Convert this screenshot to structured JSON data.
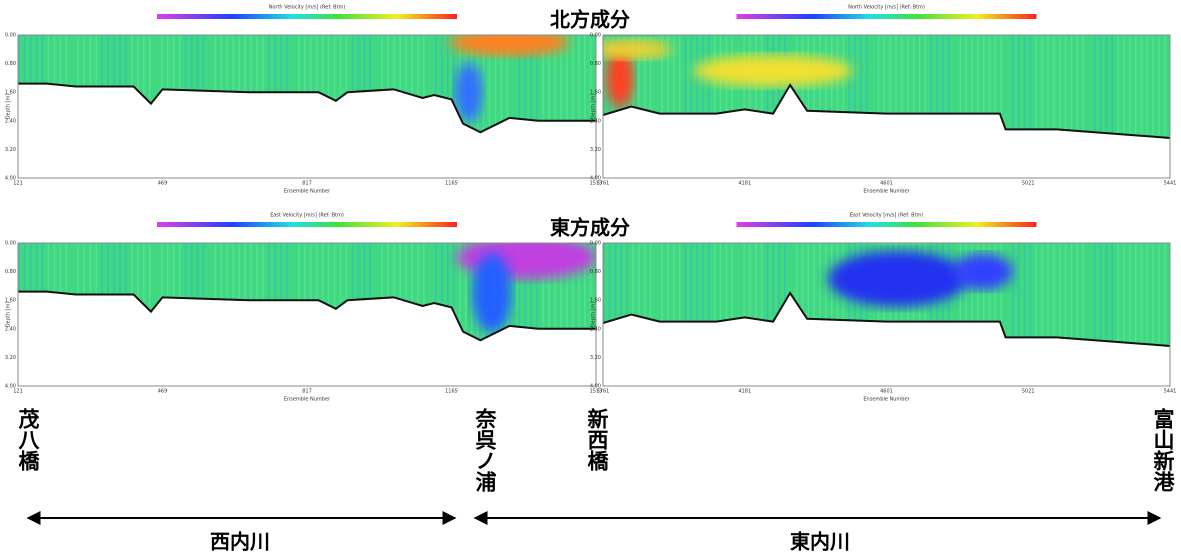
{
  "rows": [
    {
      "title": "北方成分",
      "panels": [
        {
          "colorbar_label": "North Velocity [m/s] (Ref: Btm)",
          "x_label": "Ensemble Number",
          "y_label": "Depth [m]",
          "xticks": [
            "121",
            "469",
            "817",
            "1165",
            "1513"
          ],
          "yticks": [
            "0.00",
            "0.80",
            "1.60",
            "2.40",
            "3.20",
            "4.00"
          ]
        },
        {
          "colorbar_label": "North Velocity [m/s] (Ref: Btm)",
          "x_label": "Ensemble Number",
          "y_label": "Depth [m]",
          "xticks": [
            "3761",
            "4181",
            "4601",
            "5021",
            "5441"
          ],
          "yticks": [
            "0.00",
            "0.80",
            "1.60",
            "2.40",
            "3.20",
            "4.00"
          ]
        }
      ]
    },
    {
      "title": "東方成分",
      "panels": [
        {
          "colorbar_label": "East Velocity [m/s] (Ref: Btm)",
          "x_label": "Ensemble Number",
          "y_label": "Depth [m]",
          "xticks": [
            "121",
            "469",
            "817",
            "1165",
            "1513"
          ],
          "yticks": [
            "0.00",
            "0.80",
            "1.60",
            "2.40",
            "3.20",
            "4.00"
          ]
        },
        {
          "colorbar_label": "East Velocity [m/s] (Ref: Btm)",
          "x_label": "Ensemble Number",
          "y_label": "Depth [m]",
          "xticks": [
            "3761",
            "4181",
            "4601",
            "5021",
            "5441"
          ],
          "yticks": [
            "0.00",
            "0.80",
            "1.60",
            "2.40",
            "3.20",
            "4.00"
          ]
        }
      ]
    }
  ],
  "places": [
    "茂八橋",
    "奈呉ノ浦",
    "新西橋",
    "富山新港"
  ],
  "rivers": [
    "西内川",
    "東内川"
  ]
}
